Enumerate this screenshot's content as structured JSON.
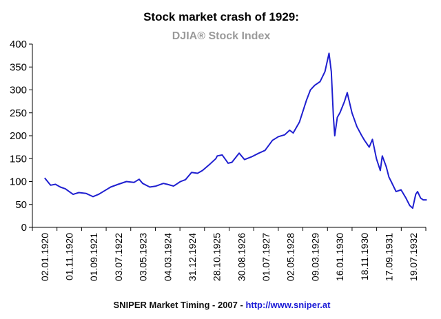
{
  "colors": {
    "series": "#1f1fd0",
    "axis": "#000000",
    "subtitle": "#9a9a9a",
    "link": "#1a1ad6"
  },
  "footer": {
    "credit": "SNIPER Market Timing - 2007 - ",
    "link": "http://www.sniper.at"
  },
  "chart_data": {
    "type": "line",
    "title": "Stock market crash of 1929:",
    "subtitle": "DJIA® Stock Index",
    "xlabel": "",
    "ylabel": "",
    "ylim": [
      0,
      400
    ],
    "yticks": [
      0,
      50,
      100,
      150,
      200,
      250,
      300,
      350,
      400
    ],
    "xticks": [
      "02.01.1920",
      "01.11.1920",
      "01.09.1921",
      "03.07.1922",
      "03.05.1923",
      "04.03.1924",
      "31.12.1924",
      "28.10.1925",
      "30.08.1926",
      "01.07.1927",
      "02.05.1928",
      "09.03.1929",
      "16.01.1930",
      "18.11.1930",
      "17.09.1931",
      "19.07.1932"
    ],
    "grid": false,
    "legend": "none",
    "series": [
      {
        "x": [
          "1920-01-02",
          "1920-03-15",
          "1920-05-15",
          "1920-07-15",
          "1920-09-15",
          "1920-11-01",
          "1920-12-20",
          "1921-03-01",
          "1921-06-01",
          "1921-08-24",
          "1921-11-01",
          "1922-01-15",
          "1922-04-01",
          "1922-07-03",
          "1922-10-14",
          "1923-01-15",
          "1923-03-20",
          "1923-05-03",
          "1923-07-31",
          "1923-10-15",
          "1924-01-15",
          "1924-03-04",
          "1924-05-20",
          "1924-08-15",
          "1924-10-15",
          "1924-12-31",
          "1925-03-15",
          "1925-05-15",
          "1925-08-15",
          "1925-10-28",
          "1925-11-15",
          "1926-01-15",
          "1926-03-30",
          "1926-05-15",
          "1926-08-14",
          "1926-10-20",
          "1927-01-15",
          "1927-04-15",
          "1927-07-01",
          "1927-10-01",
          "1927-12-15",
          "1928-03-01",
          "1928-05-02",
          "1928-06-15",
          "1928-09-01",
          "1928-11-28",
          "1929-01-15",
          "1929-03-09",
          "1929-05-15",
          "1929-07-15",
          "1929-09-03",
          "1929-10-01",
          "1929-10-28",
          "1929-11-13",
          "1929-12-15",
          "1930-01-16",
          "1930-03-15",
          "1930-04-17",
          "1930-06-15",
          "1930-08-15",
          "1930-10-15",
          "1930-11-18",
          "1931-01-15",
          "1931-02-24",
          "1931-04-15",
          "1931-06-02",
          "1931-06-27",
          "1931-08-15",
          "1931-09-17",
          "1931-10-15",
          "1931-12-15",
          "1932-02-15",
          "1932-04-15",
          "1932-06-01",
          "1932-07-08",
          "1932-08-15",
          "1932-09-07",
          "1932-10-15",
          "1932-11-15",
          "1932-12-31"
        ],
        "y": [
          108,
          92,
          94,
          88,
          84,
          78,
          72,
          76,
          74,
          67,
          72,
          80,
          88,
          94,
          100,
          98,
          105,
          96,
          88,
          90,
          96,
          94,
          90,
          100,
          104,
          120,
          118,
          124,
          138,
          150,
          156,
          158,
          140,
          142,
          162,
          148,
          154,
          162,
          168,
          190,
          198,
          202,
          212,
          206,
          230,
          278,
          300,
          310,
          318,
          340,
          380,
          340,
          240,
          200,
          240,
          250,
          275,
          294,
          250,
          220,
          200,
          190,
          175,
          192,
          150,
          124,
          156,
          132,
          110,
          100,
          78,
          82,
          64,
          48,
          42,
          72,
          78,
          64,
          60,
          60
        ]
      }
    ]
  }
}
